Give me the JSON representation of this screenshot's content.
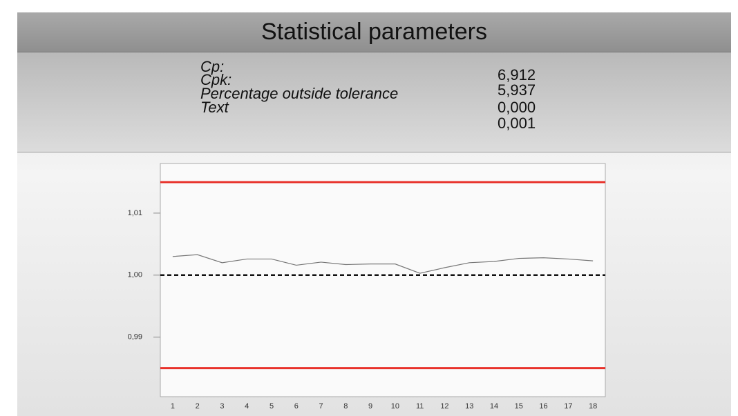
{
  "header": {
    "title": "Statistical parameters"
  },
  "stats": {
    "labels": [
      "Cp:",
      "Cpk:",
      "Percentage outside tolerance",
      "Text"
    ],
    "values": [
      "6,912",
      "5,937",
      "0,000",
      "0,001"
    ]
  },
  "chart_data": {
    "type": "line",
    "categories": [
      "1",
      "2",
      "3",
      "4",
      "5",
      "6",
      "7",
      "8",
      "9",
      "10",
      "11",
      "12",
      "13",
      "14",
      "15",
      "16",
      "17",
      "18"
    ],
    "series": [
      {
        "color": "#777777",
        "values": [
          1.003,
          1.0033,
          1.002,
          1.0026,
          1.0026,
          1.0016,
          1.0021,
          1.0017,
          1.0018,
          1.0018,
          1.0003,
          1.0012,
          1.002,
          1.0022,
          1.0027,
          1.0028,
          1.0026,
          1.0023
        ]
      }
    ],
    "reference_lines": [
      {
        "value": 1.015,
        "color": "#e8312a",
        "style": "solid"
      },
      {
        "value": 0.985,
        "color": "#e8312a",
        "style": "solid"
      },
      {
        "value": 1.0,
        "color": "#111111",
        "style": "dashed"
      }
    ],
    "ylim": [
      0.9804,
      1.018
    ],
    "yticks": [
      {
        "value": 0.99,
        "label": "0,99"
      },
      {
        "value": 1.0,
        "label": "1,00"
      },
      {
        "value": 1.01,
        "label": "1,01"
      }
    ]
  }
}
